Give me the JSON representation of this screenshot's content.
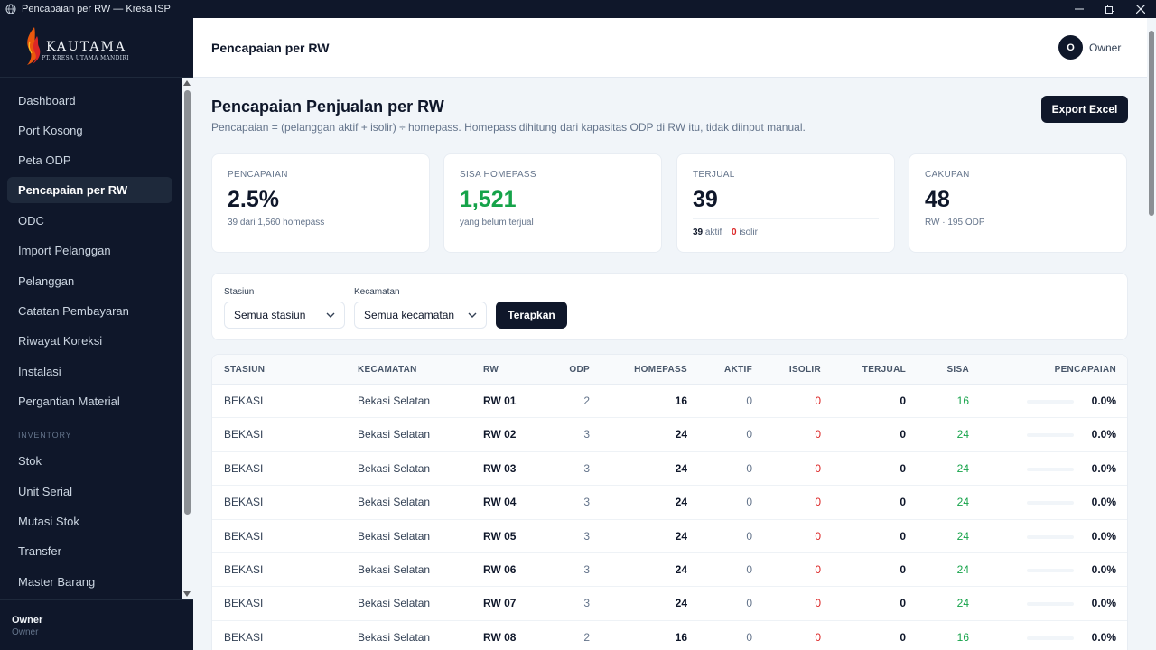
{
  "window": {
    "title": "Pencapaian per RW — Kresa ISP"
  },
  "brand": {
    "name": "KAUTAMA",
    "subtitle": "PT. KRESA UTAMA MANDIRI"
  },
  "sidebar": {
    "items": [
      {
        "label": "Dashboard"
      },
      {
        "label": "Port Kosong"
      },
      {
        "label": "Peta ODP"
      },
      {
        "label": "Pencapaian per RW",
        "active": true
      },
      {
        "label": "ODC"
      },
      {
        "label": "Import Pelanggan"
      },
      {
        "label": "Pelanggan"
      },
      {
        "label": "Catatan Pembayaran"
      },
      {
        "label": "Riwayat Koreksi"
      },
      {
        "label": "Instalasi"
      },
      {
        "label": "Pergantian Material"
      }
    ],
    "inventory_label": "INVENTORY",
    "inventory_items": [
      {
        "label": "Stok"
      },
      {
        "label": "Unit Serial"
      },
      {
        "label": "Mutasi Stok"
      },
      {
        "label": "Transfer"
      },
      {
        "label": "Master Barang"
      }
    ],
    "user": {
      "name": "Owner",
      "role": "Owner"
    }
  },
  "header": {
    "title": "Pencapaian per RW",
    "avatar_initial": "O",
    "user": "Owner"
  },
  "page": {
    "heading": "Pencapaian Penjualan per RW",
    "description": "Pencapaian = (pelanggan aktif + isolir) ÷ homepass. Homepass dihitung dari kapasitas ODP di RW itu, tidak diinput manual.",
    "export_label": "Export Excel"
  },
  "cards": {
    "pencapaian": {
      "label": "PENCAPAIAN",
      "value": "2.5%",
      "sub": "39 dari 1,560 homepass"
    },
    "sisa": {
      "label": "SISA HOMEPASS",
      "value": "1,521",
      "sub": "yang belum terjual"
    },
    "terjual": {
      "label": "TERJUAL",
      "value": "39",
      "aktif": "39",
      "aktif_label": "aktif",
      "isolir": "0",
      "isolir_label": "isolir"
    },
    "cakupan": {
      "label": "CAKUPAN",
      "value": "48",
      "sub": "RW · 195 ODP"
    }
  },
  "filters": {
    "stasiun_label": "Stasiun",
    "stasiun_value": "Semua stasiun",
    "kecamatan_label": "Kecamatan",
    "kecamatan_value": "Semua kecamatan",
    "apply_label": "Terapkan"
  },
  "table": {
    "headers": {
      "stasiun": "STASIUN",
      "kecamatan": "KECAMATAN",
      "rw": "RW",
      "odp": "ODP",
      "homepass": "HOMEPASS",
      "aktif": "AKTIF",
      "isolir": "ISOLIR",
      "terjual": "TERJUAL",
      "sisa": "SISA",
      "pencapaian": "PENCAPAIAN"
    },
    "rows": [
      {
        "stasiun": "BEKASI",
        "kecamatan": "Bekasi Selatan",
        "rw": "RW 01",
        "odp": "2",
        "homepass": "16",
        "aktif": "0",
        "isolir": "0",
        "terjual": "0",
        "sisa": "16",
        "pencapaian": "0.0%",
        "progress": 0
      },
      {
        "stasiun": "BEKASI",
        "kecamatan": "Bekasi Selatan",
        "rw": "RW 02",
        "odp": "3",
        "homepass": "24",
        "aktif": "0",
        "isolir": "0",
        "terjual": "0",
        "sisa": "24",
        "pencapaian": "0.0%",
        "progress": 0
      },
      {
        "stasiun": "BEKASI",
        "kecamatan": "Bekasi Selatan",
        "rw": "RW 03",
        "odp": "3",
        "homepass": "24",
        "aktif": "0",
        "isolir": "0",
        "terjual": "0",
        "sisa": "24",
        "pencapaian": "0.0%",
        "progress": 0
      },
      {
        "stasiun": "BEKASI",
        "kecamatan": "Bekasi Selatan",
        "rw": "RW 04",
        "odp": "3",
        "homepass": "24",
        "aktif": "0",
        "isolir": "0",
        "terjual": "0",
        "sisa": "24",
        "pencapaian": "0.0%",
        "progress": 0
      },
      {
        "stasiun": "BEKASI",
        "kecamatan": "Bekasi Selatan",
        "rw": "RW 05",
        "odp": "3",
        "homepass": "24",
        "aktif": "0",
        "isolir": "0",
        "terjual": "0",
        "sisa": "24",
        "pencapaian": "0.0%",
        "progress": 0
      },
      {
        "stasiun": "BEKASI",
        "kecamatan": "Bekasi Selatan",
        "rw": "RW 06",
        "odp": "3",
        "homepass": "24",
        "aktif": "0",
        "isolir": "0",
        "terjual": "0",
        "sisa": "24",
        "pencapaian": "0.0%",
        "progress": 0
      },
      {
        "stasiun": "BEKASI",
        "kecamatan": "Bekasi Selatan",
        "rw": "RW 07",
        "odp": "3",
        "homepass": "24",
        "aktif": "0",
        "isolir": "0",
        "terjual": "0",
        "sisa": "24",
        "pencapaian": "0.0%",
        "progress": 0
      },
      {
        "stasiun": "BEKASI",
        "kecamatan": "Bekasi Selatan",
        "rw": "RW 08",
        "odp": "2",
        "homepass": "16",
        "aktif": "0",
        "isolir": "0",
        "terjual": "0",
        "sisa": "16",
        "pencapaian": "0.0%",
        "progress": 0
      }
    ]
  },
  "colors": {
    "brand_dark": "#0f172a",
    "accent_green": "#16a34a",
    "accent_red": "#dc2626"
  },
  "icons": {
    "app": "globe-icon",
    "select": "chevron-down-icon"
  }
}
